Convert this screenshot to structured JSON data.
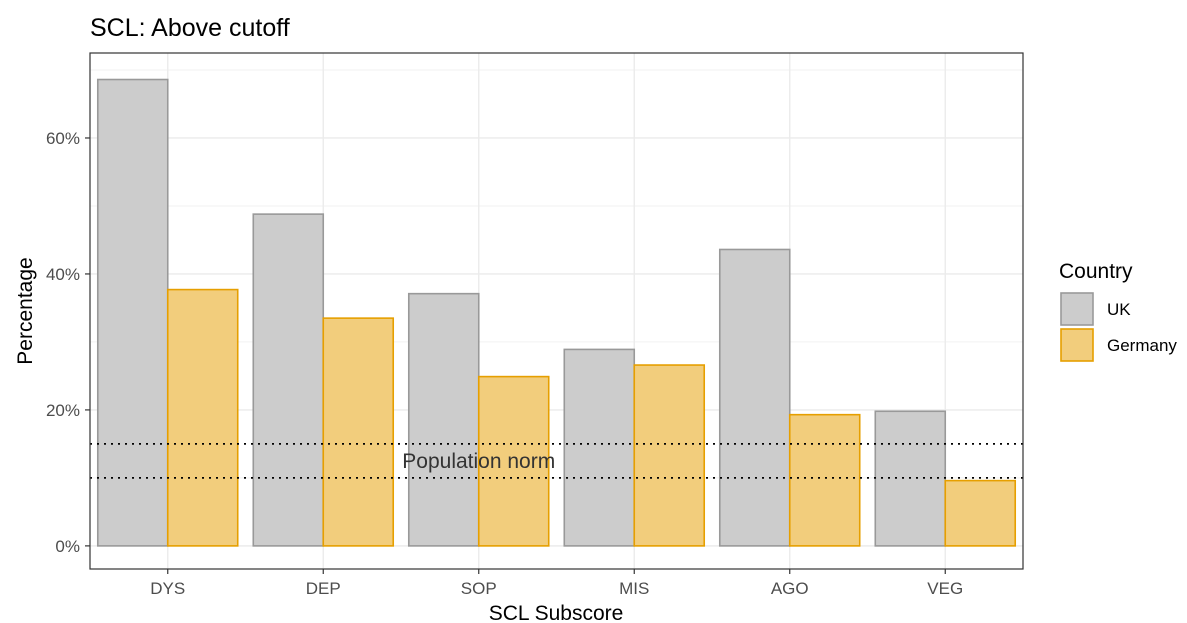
{
  "chart_data": {
    "type": "bar",
    "title": "SCL: Above cutoff",
    "xlabel": "SCL Subscore",
    "ylabel": "Percentage",
    "categories": [
      "DYS",
      "DEP",
      "SOP",
      "MIS",
      "AGO",
      "VEG"
    ],
    "series": [
      {
        "name": "UK",
        "values": [
          68.6,
          48.8,
          37.1,
          28.9,
          43.6,
          19.8
        ],
        "fill": "#cccccc",
        "stroke": "#999999"
      },
      {
        "name": "Germany",
        "values": [
          37.7,
          33.5,
          24.9,
          26.6,
          19.3,
          9.6
        ],
        "fill": "#f2cd7c",
        "stroke": "#e69f00"
      }
    ],
    "ylim": [
      -3.4,
      72.5
    ],
    "yticks": [
      0,
      20,
      40,
      60
    ],
    "ytick_labels": [
      "0%",
      "20%",
      "40%",
      "60%"
    ],
    "reference_lines": [
      15,
      10
    ],
    "annotation": {
      "text": "Population norm",
      "x_category": "SOP",
      "y": 12.5
    },
    "legend": {
      "title": "Country",
      "position": "right"
    },
    "grid": true
  }
}
